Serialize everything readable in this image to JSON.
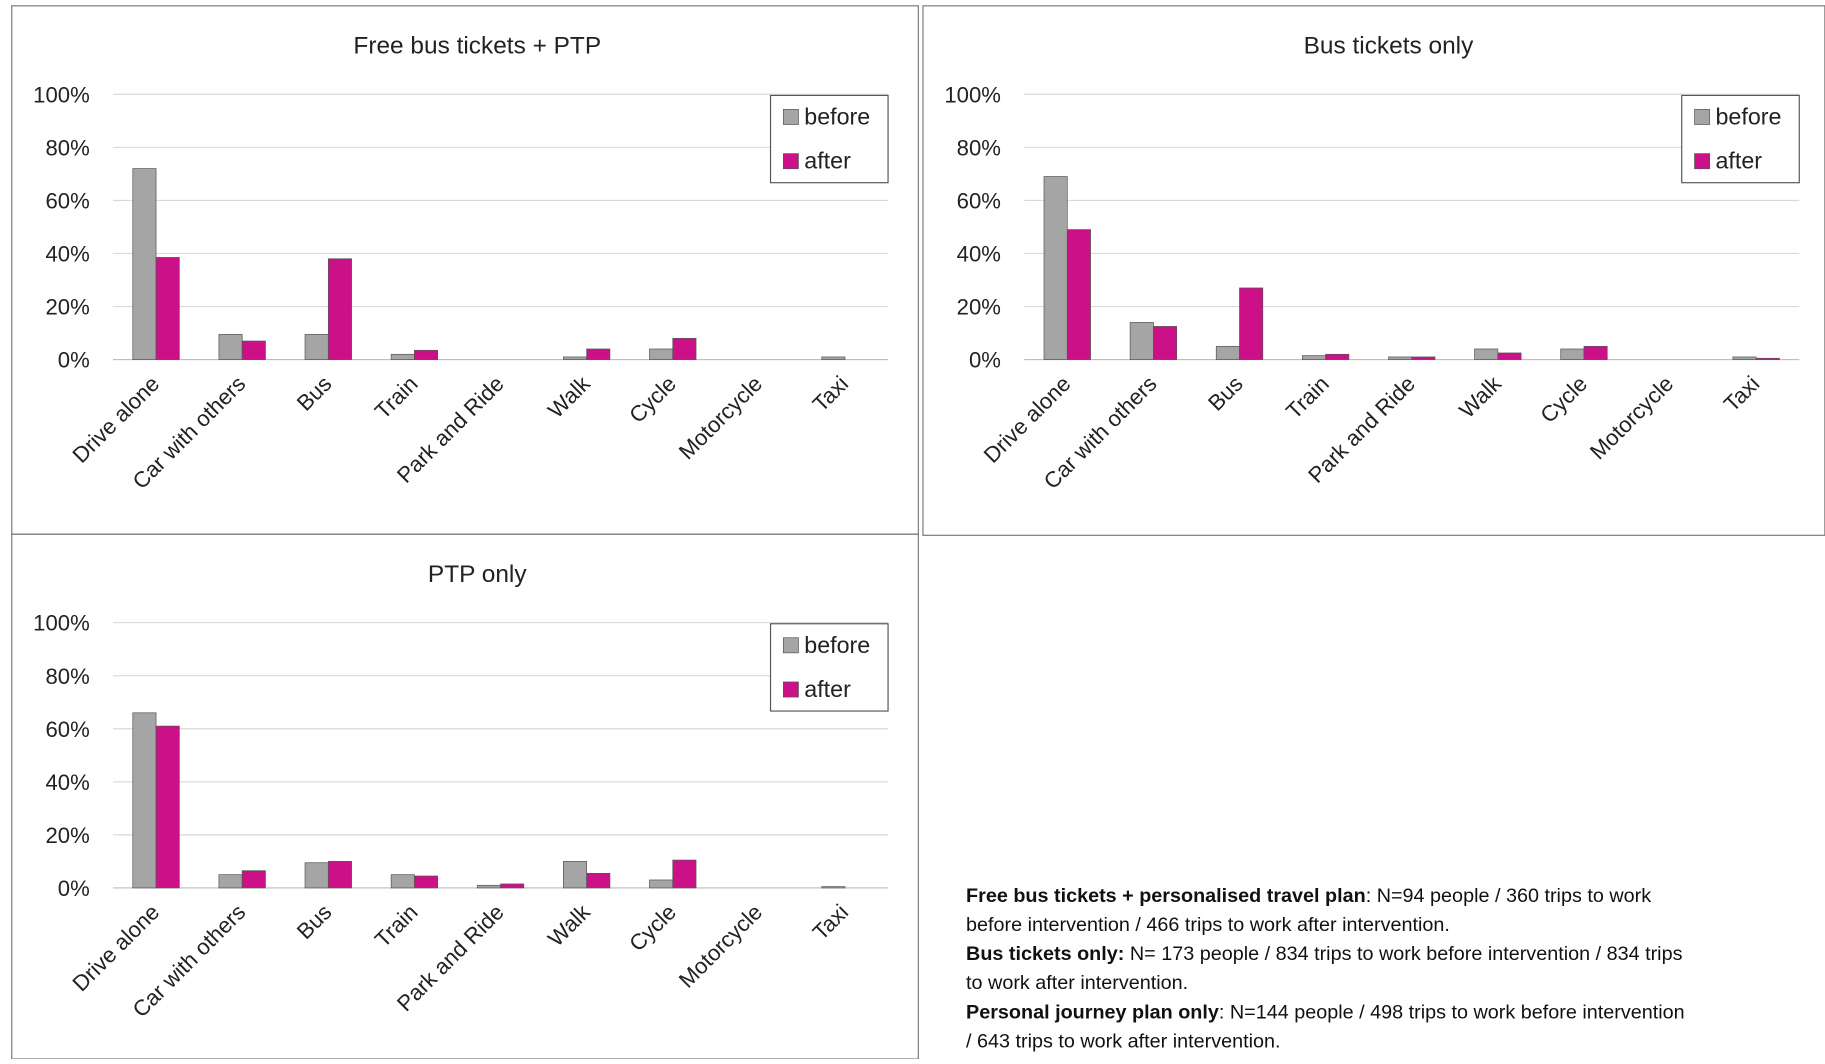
{
  "chart_data": [
    {
      "type": "bar",
      "title": "Free bus tickets + PTP",
      "categories": [
        "Drive alone",
        "Car with others",
        "Bus",
        "Train",
        "Park and Ride",
        "Walk",
        "Cycle",
        "Motorcycle",
        "Taxi"
      ],
      "series": [
        {
          "name": "before",
          "color": "#a5a5a5",
          "values": [
            72,
            9.5,
            9.5,
            2,
            0,
            1,
            4,
            0,
            1
          ]
        },
        {
          "name": "after",
          "color": "#cc1188",
          "values": [
            38.5,
            7,
            38,
            3.5,
            0,
            4,
            8,
            0,
            0
          ]
        }
      ],
      "ylim": [
        0,
        100
      ],
      "yticks": [
        {
          "value": 0,
          "label": "0%"
        },
        {
          "value": 20,
          "label": "20%"
        },
        {
          "value": 40,
          "label": "40%"
        },
        {
          "value": 60,
          "label": "60%"
        },
        {
          "value": 80,
          "label": "80%"
        },
        {
          "value": 100,
          "label": "100%"
        }
      ],
      "grid": true,
      "legend": "top-right"
    },
    {
      "type": "bar",
      "title": "Bus tickets only",
      "categories": [
        "Drive alone",
        "Car with others",
        "Bus",
        "Train",
        "Park and Ride",
        "Walk",
        "Cycle",
        "Motorcycle",
        "Taxi"
      ],
      "series": [
        {
          "name": "before",
          "color": "#a5a5a5",
          "values": [
            69,
            14,
            5,
            1.5,
            1,
            4,
            4,
            0,
            1
          ]
        },
        {
          "name": "after",
          "color": "#cc1188",
          "values": [
            49,
            12.5,
            27,
            2,
            1,
            2.5,
            5,
            0,
            0.5
          ]
        }
      ],
      "ylim": [
        0,
        100
      ],
      "yticks": [
        {
          "value": 0,
          "label": "0%"
        },
        {
          "value": 20,
          "label": "20%"
        },
        {
          "value": 40,
          "label": "40%"
        },
        {
          "value": 60,
          "label": "60%"
        },
        {
          "value": 80,
          "label": "80%"
        },
        {
          "value": 100,
          "label": "100%"
        }
      ],
      "grid": true,
      "legend": "top-right"
    },
    {
      "type": "bar",
      "title": "PTP only",
      "categories": [
        "Drive alone",
        "Car with others",
        "Bus",
        "Train",
        "Park and Ride",
        "Walk",
        "Cycle",
        "Motorcycle",
        "Taxi"
      ],
      "series": [
        {
          "name": "before",
          "color": "#a5a5a5",
          "values": [
            66,
            5,
            9.5,
            5,
            1,
            10,
            3,
            0,
            0.5
          ]
        },
        {
          "name": "after",
          "color": "#cc1188",
          "values": [
            61,
            6.5,
            10,
            4.5,
            1.5,
            5.5,
            10.5,
            0,
            0
          ]
        }
      ],
      "ylim": [
        0,
        100
      ],
      "yticks": [
        {
          "value": 0,
          "label": "0%"
        },
        {
          "value": 20,
          "label": "20%"
        },
        {
          "value": 40,
          "label": "40%"
        },
        {
          "value": 60,
          "label": "60%"
        },
        {
          "value": 80,
          "label": "80%"
        },
        {
          "value": 100,
          "label": "100%"
        }
      ],
      "grid": true,
      "legend": "top-right"
    }
  ],
  "notes": [
    {
      "bold": "Free bus tickets + personalised travel plan",
      "text": ": N=94 people / 360 trips to work before intervention / 466 trips to work after intervention."
    },
    {
      "bold": "Bus tickets only:",
      "text": " N= 173 people / 834 trips to work before intervention / 834 trips to work after intervention."
    },
    {
      "bold": "Personal journey plan only",
      "text": ": N=144 people / 498 trips to work before intervention / 643 trips to work after intervention."
    }
  ]
}
